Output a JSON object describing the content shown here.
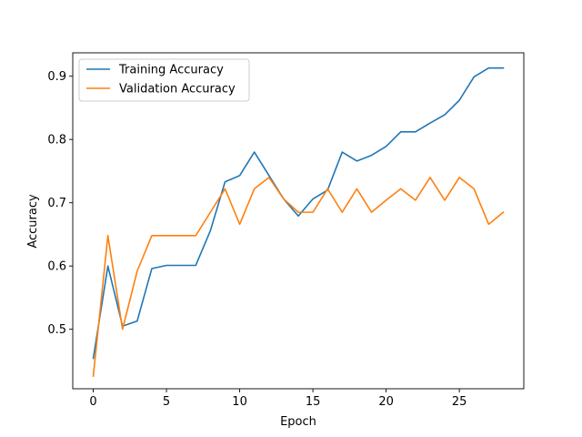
{
  "chart_data": {
    "type": "line",
    "title": "",
    "xlabel": "Epoch",
    "ylabel": "Accuracy",
    "xlim": [
      -1.4,
      29.4
    ],
    "ylim": [
      0.406,
      0.937
    ],
    "xticks": [
      0,
      5,
      10,
      15,
      20,
      25
    ],
    "yticks": [
      0.5,
      0.6,
      0.7,
      0.8,
      0.9
    ],
    "grid": false,
    "legend_position": "top-left",
    "x": [
      0,
      1,
      2,
      3,
      4,
      5,
      6,
      7,
      8,
      9,
      10,
      11,
      12,
      13,
      14,
      15,
      16,
      17,
      18,
      19,
      20,
      21,
      22,
      23,
      24,
      25,
      26,
      27,
      28
    ],
    "series": [
      {
        "name": "Training Accuracy",
        "color": "#1f77b4",
        "values": [
          0.454,
          0.6,
          0.505,
          0.513,
          0.596,
          0.601,
          0.601,
          0.601,
          0.656,
          0.733,
          0.743,
          0.78,
          0.743,
          0.706,
          0.679,
          0.706,
          0.72,
          0.78,
          0.766,
          0.775,
          0.789,
          0.812,
          0.812,
          0.826,
          0.839,
          0.862,
          0.899,
          0.913,
          0.913
        ]
      },
      {
        "name": "Validation Accuracy",
        "color": "#ff7f0e",
        "values": [
          0.426,
          0.648,
          0.5,
          0.592,
          0.648,
          0.648,
          0.648,
          0.648,
          0.685,
          0.722,
          0.666,
          0.722,
          0.74,
          0.706,
          0.685,
          0.685,
          0.722,
          0.685,
          0.722,
          0.685,
          0.704,
          0.722,
          0.704,
          0.74,
          0.704,
          0.74,
          0.722,
          0.666,
          0.685
        ]
      }
    ]
  }
}
